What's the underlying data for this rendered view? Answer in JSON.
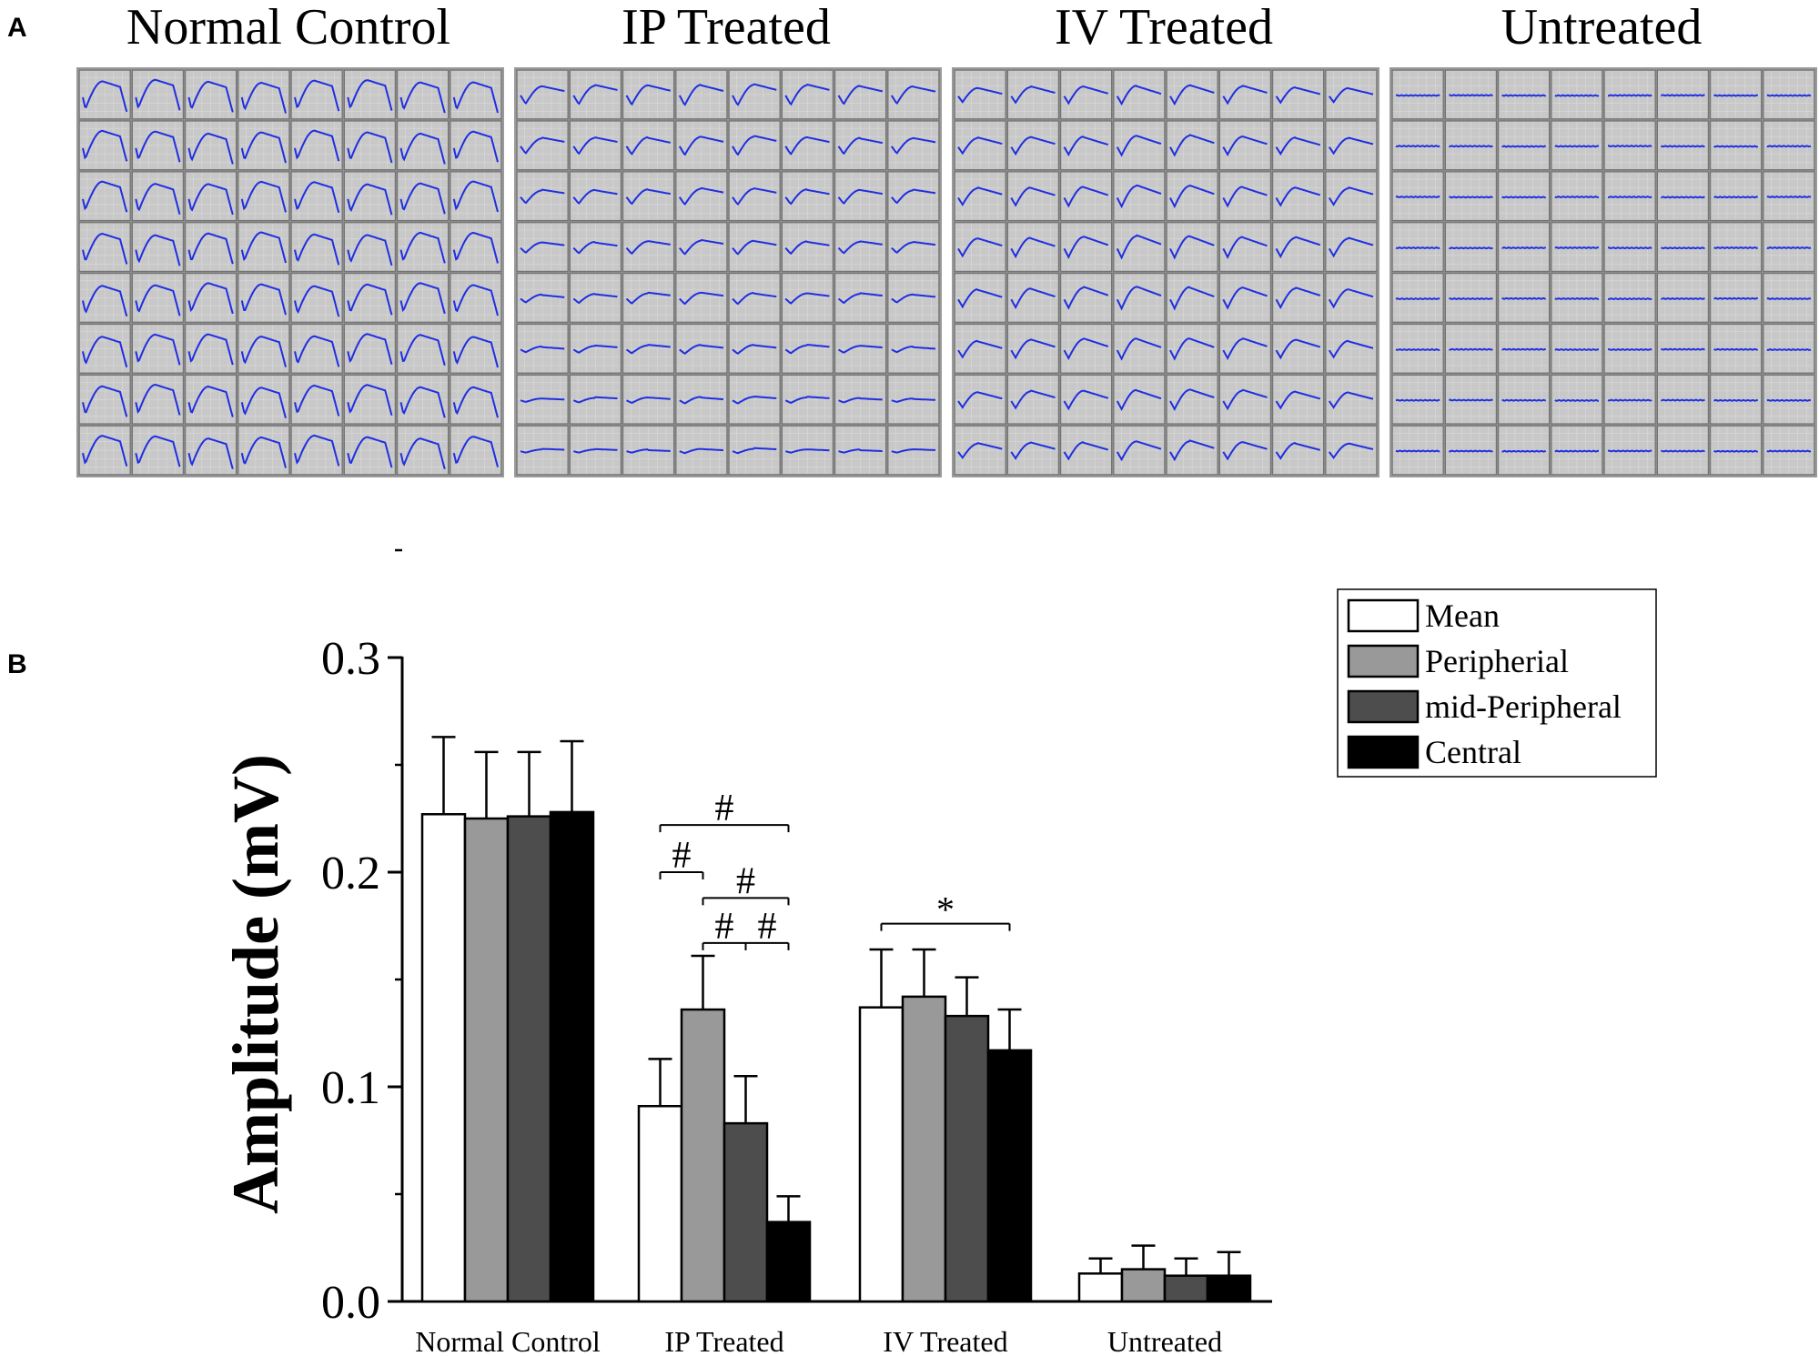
{
  "panel_labels": {
    "a": "A",
    "b": "B"
  },
  "panel_a": {
    "grid_size": 8,
    "groups": [
      {
        "title": "Normal Control",
        "trace": "normal"
      },
      {
        "title": "IP Treated",
        "trace": "ip"
      },
      {
        "title": "IV Treated",
        "trace": "iv"
      },
      {
        "title": "Untreated",
        "trace": "flat"
      }
    ],
    "colors": {
      "cell_background": "#c8c8c8",
      "trace": "#1f2fe0"
    }
  },
  "chart_data": {
    "type": "bar",
    "title": "",
    "xlabel": "",
    "ylabel": "Amplitude (mV)",
    "ylim": [
      0,
      0.3
    ],
    "yticks": [
      "0.0",
      "0.1",
      "0.2",
      "0.3"
    ],
    "categories": [
      "Normal Control",
      "IP Treated",
      "IV Treated",
      "Untreated"
    ],
    "series": [
      {
        "name": "Mean",
        "color": "#ffffff",
        "values": [
          0.227,
          0.091,
          0.137,
          0.013
        ],
        "errors": [
          0.036,
          0.022,
          0.027,
          0.007
        ]
      },
      {
        "name": "Peripherial",
        "color": "#999999",
        "values": [
          0.225,
          0.136,
          0.142,
          0.015
        ],
        "errors": [
          0.031,
          0.025,
          0.022,
          0.011
        ]
      },
      {
        "name": "mid-Peripheral",
        "color": "#4d4d4d",
        "values": [
          0.226,
          0.083,
          0.133,
          0.012
        ],
        "errors": [
          0.03,
          0.022,
          0.018,
          0.008
        ]
      },
      {
        "name": "Central",
        "color": "#000000",
        "values": [
          0.228,
          0.037,
          0.117,
          0.012
        ],
        "errors": [
          0.033,
          0.012,
          0.019,
          0.011
        ]
      }
    ],
    "legend_position": "top-right",
    "annotations": [
      {
        "symbol": "#",
        "category": 1,
        "from_series": 0,
        "to_series": 3,
        "level": 0.222
      },
      {
        "symbol": "#",
        "category": 1,
        "from_series": 0,
        "to_series": 1,
        "level": 0.2
      },
      {
        "symbol": "#",
        "category": 1,
        "from_series": 1,
        "to_series": 3,
        "level": 0.188
      },
      {
        "symbol": "#",
        "category": 1,
        "from_series": 1,
        "to_series": 2,
        "level": 0.167
      },
      {
        "symbol": "#",
        "category": 1,
        "from_series": 2,
        "to_series": 3,
        "level": 0.167
      },
      {
        "symbol": "*",
        "category": 2,
        "from_series": 0,
        "to_series": 3,
        "level": 0.176
      }
    ]
  }
}
